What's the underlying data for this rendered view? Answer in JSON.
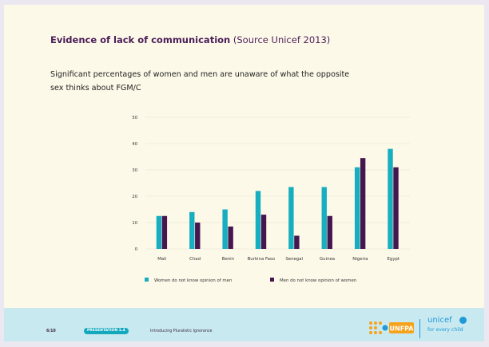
{
  "title": {
    "emphasis": "Evidence of lack of communication",
    "source": " (Source Unicef 2013)"
  },
  "subtitle": "Significant percentages of women and men are unaware of what the opposite sex thinks about FGM/C",
  "chart_data": {
    "type": "bar",
    "categories": [
      "Mali",
      "Chad",
      "Benin",
      "Burkina Faso",
      "Senegal",
      "Guinea",
      "Nigeria",
      "Egypt"
    ],
    "series": [
      {
        "name": "Women do not know opinion of men",
        "color": "#17aebf",
        "values": [
          12.5,
          14,
          15,
          22,
          23.5,
          23.5,
          31,
          38
        ]
      },
      {
        "name": "Men do not know opinion of women",
        "color": "#46174f",
        "values": [
          12.5,
          10,
          8.5,
          13,
          5,
          12.5,
          34.5,
          31
        ]
      }
    ],
    "ylim": [
      0,
      50
    ],
    "yticks": [
      0,
      10,
      20,
      30,
      40,
      50
    ],
    "grid": true,
    "legend": "bottom"
  },
  "footer": {
    "page": "6/10",
    "badge": "PRESENTATION 1.4",
    "text": "Introducing Pluralistic Ignorance"
  },
  "logos": {
    "unfpa": "UNFPA",
    "unicef": "unicef",
    "unicef_tagline": "for every child"
  }
}
